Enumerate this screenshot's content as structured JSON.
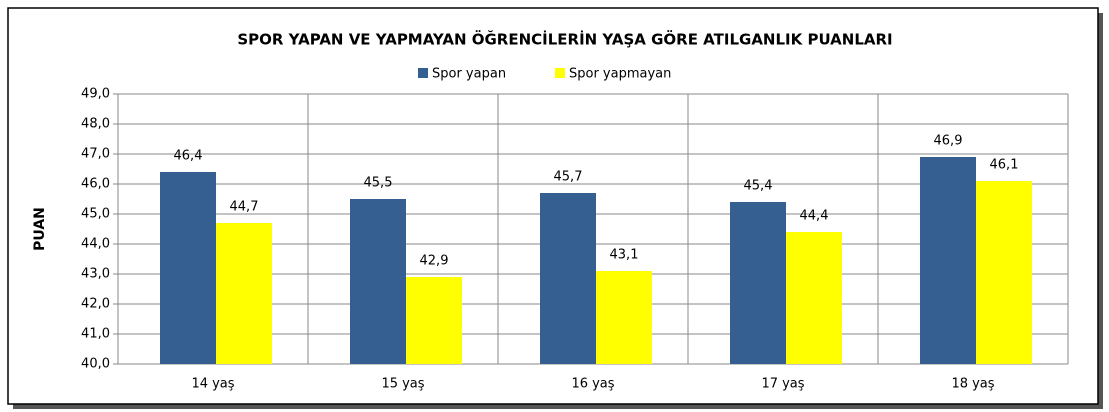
{
  "chart_data": {
    "type": "bar",
    "title": "SPOR YAPAN VE YAPMAYAN ÖĞRENCİLERİN YAŞA GÖRE ATILGANLIK PUANLARI",
    "y_label": "PUAN",
    "categories": [
      "14 yaş",
      "15 yaş",
      "16 yaş",
      "17 yaş",
      "18 yaş"
    ],
    "series": [
      {
        "name": "Spor yapan",
        "color": "#355f91",
        "values": [
          46.4,
          45.5,
          45.7,
          45.4,
          46.9
        ],
        "value_labels": [
          "46,4",
          "45,5",
          "45,7",
          "45,4",
          "46,9"
        ]
      },
      {
        "name": "Spor yapmayan",
        "color": "#ffff00",
        "values": [
          44.7,
          42.9,
          43.1,
          44.4,
          46.1
        ],
        "value_labels": [
          "44,7",
          "42,9",
          "43,1",
          "44,4",
          "46,1"
        ]
      }
    ],
    "ylim": [
      40,
      49
    ],
    "yticks": [
      {
        "value": 40,
        "label": "40,0"
      },
      {
        "value": 41,
        "label": "41,0"
      },
      {
        "value": 42,
        "label": "42,0"
      },
      {
        "value": 43,
        "label": "43,0"
      },
      {
        "value": 44,
        "label": "44,0"
      },
      {
        "value": 45,
        "label": "45,0"
      },
      {
        "value": 46,
        "label": "46,0"
      },
      {
        "value": 47,
        "label": "47,0"
      },
      {
        "value": 48,
        "label": "48,0"
      },
      {
        "value": 49,
        "label": "49,0"
      }
    ],
    "grid": true,
    "legend": "top"
  }
}
